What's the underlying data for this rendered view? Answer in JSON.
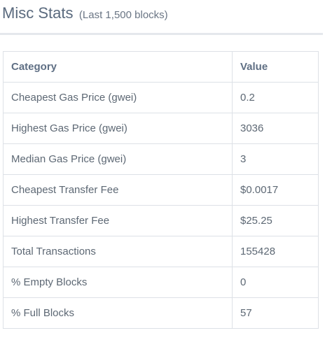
{
  "header": {
    "title": "Misc Stats",
    "subtitle": "(Last 1,500 blocks)"
  },
  "table": {
    "columns": [
      "Category",
      "Value"
    ],
    "rows": [
      {
        "category": "Cheapest Gas Price (gwei)",
        "value": "0.2"
      },
      {
        "category": "Highest Gas Price (gwei)",
        "value": "3036"
      },
      {
        "category": "Median Gas Price (gwei)",
        "value": "3"
      },
      {
        "category": "Cheapest Transfer Fee",
        "value": "$0.0017"
      },
      {
        "category": "Highest Transfer Fee",
        "value": "$25.25"
      },
      {
        "category": "Total Transactions",
        "value": "155428"
      },
      {
        "category": "% Empty Blocks",
        "value": "0"
      },
      {
        "category": "% Full Blocks",
        "value": "57"
      }
    ]
  }
}
